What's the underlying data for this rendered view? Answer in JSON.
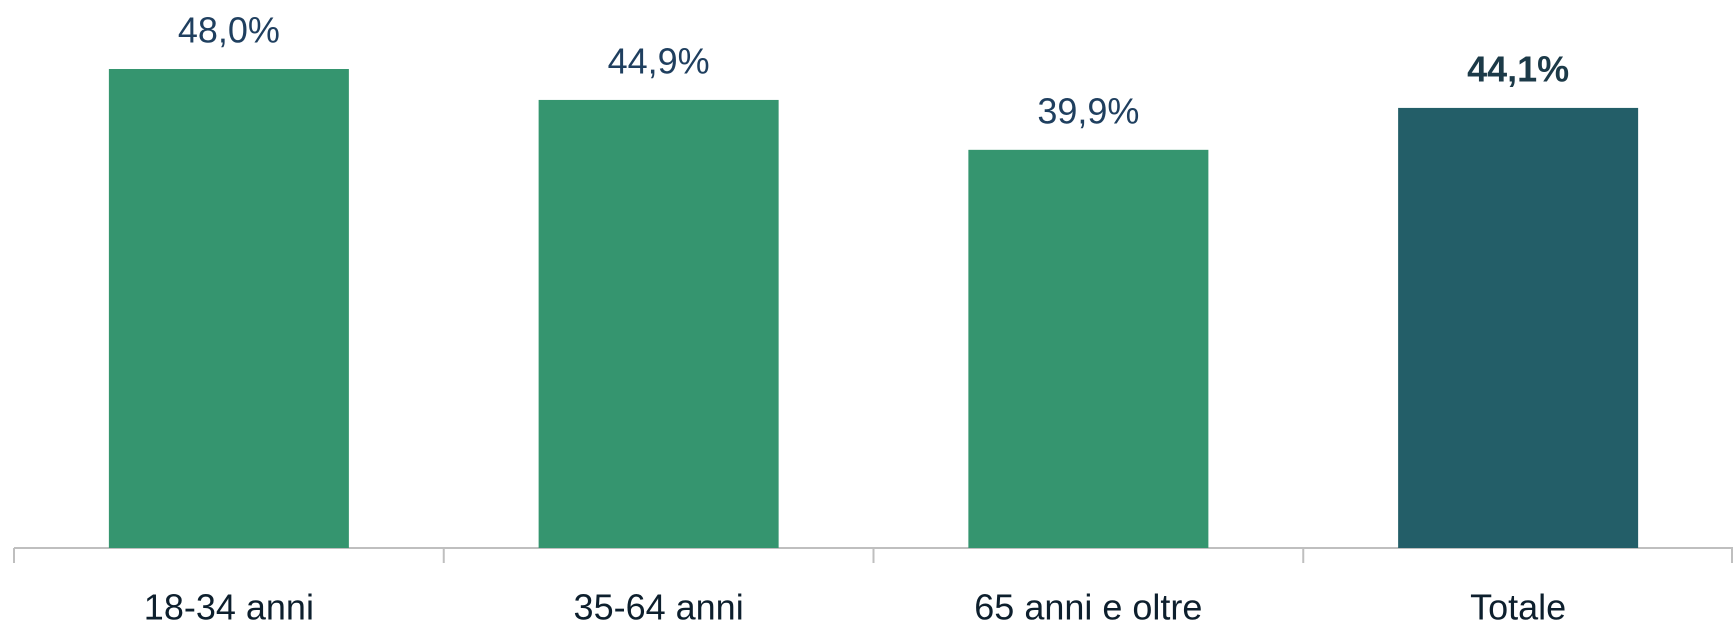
{
  "chart_data": {
    "type": "bar",
    "categories": [
      "18-34 anni",
      "35-64 anni",
      "65 anni e oltre",
      "Totale"
    ],
    "values": [
      48.0,
      44.9,
      39.9,
      44.1
    ],
    "value_labels": [
      "48,0%",
      "44,9%",
      "39,9%",
      "44,1%"
    ],
    "colors": [
      "#35956f",
      "#35956f",
      "#35956f",
      "#235e68"
    ],
    "bold_labels": [
      false,
      false,
      false,
      true
    ],
    "grid": false
  }
}
